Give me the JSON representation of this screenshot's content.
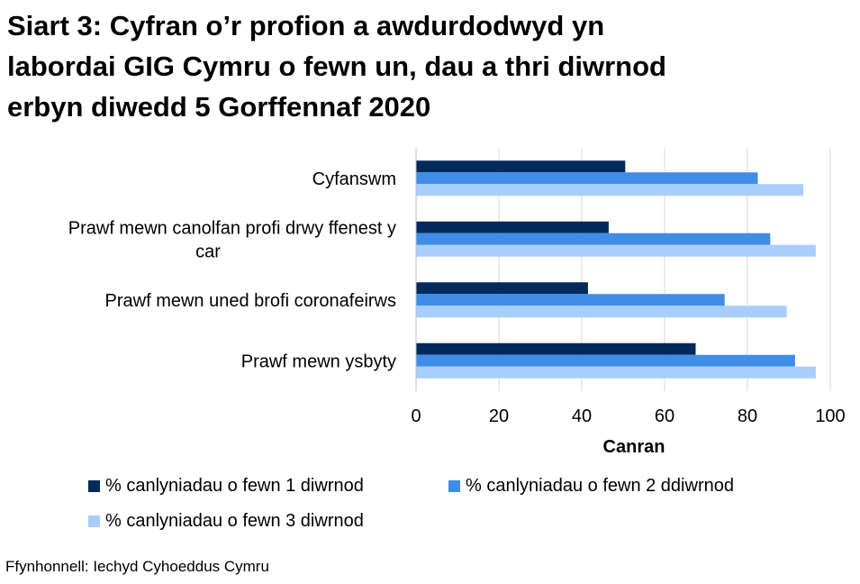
{
  "title_lines": [
    "Siart 3: Cyfran o’r profion a awdurdodwyd yn",
    "labordai GIG Cymru o fewn un, dau a thri diwrnod",
    "erbyn diwedd 5 Gorffennaf 2020"
  ],
  "source": "Ffynhonnell: Iechyd Cyhoeddus Cymru",
  "chart_data": {
    "type": "bar",
    "orientation": "horizontal",
    "title": "Siart 3: Cyfran o’r profion a awdurdodwyd yn labordai GIG Cymru o fewn un, dau a thri diwrnod erbyn diwedd 5 Gorffennaf 2020",
    "categories": [
      [
        "Cyfanswm"
      ],
      [
        "Prawf mewn canolfan profi drwy ffenest y",
        "car"
      ],
      [
        "Prawf mewn uned brofi coronafeirws"
      ],
      [
        "Prawf mewn ysbyty"
      ]
    ],
    "series": [
      {
        "name": "% canlyniadau o fewn 1 diwrnod",
        "color": "#002a5c",
        "values": [
          50.5,
          46.5,
          41.5,
          67.5
        ]
      },
      {
        "name": "% canlyniadau o fewn 2 ddiwrnod",
        "color": "#3f8de6",
        "values": [
          82.5,
          85.5,
          74.5,
          91.5
        ]
      },
      {
        "name": "% canlyniadau o fewn 3 diwrnod",
        "color": "#a9cdfc",
        "values": [
          93.5,
          96.5,
          89.5,
          96.5
        ]
      }
    ],
    "xlabel": "Canran",
    "ylabel": "",
    "xlim": [
      0,
      100
    ],
    "xticks": [
      0,
      20,
      40,
      60,
      80,
      100
    ],
    "grid": "vertical",
    "legend_position": "bottom"
  }
}
